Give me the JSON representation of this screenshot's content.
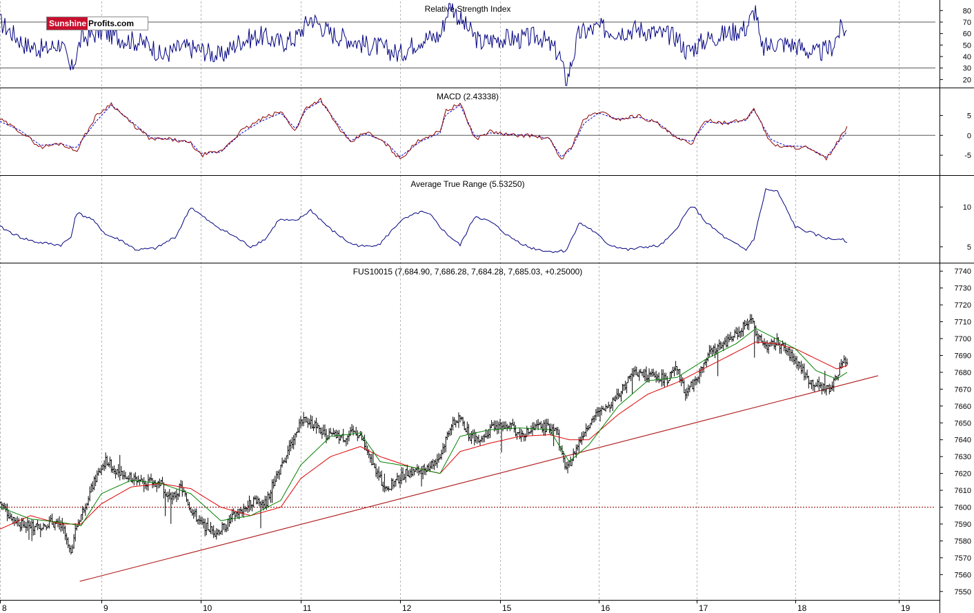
{
  "logo": {
    "part1": "Sunshine",
    "part2": "Profits.com"
  },
  "panels": {
    "rsi": {
      "title": "Relative Strength Index",
      "ticks": [
        80,
        70,
        60,
        50,
        40,
        30,
        20
      ],
      "levels": [
        70,
        30
      ]
    },
    "macd": {
      "title": "MACD (2.43338)",
      "ticks": [
        5,
        0,
        -5
      ]
    },
    "atr": {
      "title": "Average True Range (5.53250)",
      "ticks": [
        10,
        5
      ]
    },
    "price": {
      "title": "FUS10015 (7,684.90, 7,686.28, 7,684.28, 7,685.03, +0.25000)"
    }
  },
  "colors": {
    "price_bars": "#000000",
    "rsi_line": "#000080",
    "macd_line": "#8b0000",
    "macd_signal": "#0000cd",
    "atr_line": "#000080",
    "ma_short": "#008000",
    "ma_long": "#dd0000",
    "trendline": "#b22222",
    "support": "#8b0000",
    "grid": "#b4b4b4"
  },
  "chart_data": {
    "type": "candlestick",
    "symbol": "FUS10015",
    "last_ohlc": {
      "open": 7684.9,
      "high": 7686.28,
      "low": 7684.28,
      "close": 7685.03,
      "change": 0.25
    },
    "x_labels": [
      "8",
      "9",
      "10",
      "11",
      "12",
      "15",
      "16",
      "17",
      "18",
      "19"
    ],
    "price_axis": {
      "ylim": [
        7545,
        7745
      ],
      "ticks": [
        7740,
        7730,
        7720,
        7710,
        7700,
        7690,
        7680,
        7670,
        7660,
        7650,
        7640,
        7630,
        7620,
        7610,
        7600,
        7590,
        7580,
        7570,
        7560,
        7550
      ]
    },
    "price_path": [
      [
        0,
        7603
      ],
      [
        0.08,
        7596
      ],
      [
        0.2,
        7590
      ],
      [
        0.35,
        7588
      ],
      [
        0.5,
        7591
      ],
      [
        0.62,
        7588
      ],
      [
        0.69,
        7572
      ],
      [
        0.75,
        7588
      ],
      [
        0.85,
        7603
      ],
      [
        0.95,
        7618
      ],
      [
        1.05,
        7628
      ],
      [
        1.12,
        7623
      ],
      [
        1.2,
        7620
      ],
      [
        1.3,
        7617
      ],
      [
        1.45,
        7615
      ],
      [
        1.6,
        7614
      ],
      [
        1.7,
        7604
      ],
      [
        1.8,
        7612
      ],
      [
        1.9,
        7599
      ],
      [
        2.0,
        7590
      ],
      [
        2.15,
        7585
      ],
      [
        2.25,
        7589
      ],
      [
        2.35,
        7596
      ],
      [
        2.45,
        7600
      ],
      [
        2.55,
        7605
      ],
      [
        2.65,
        7602
      ],
      [
        2.75,
        7618
      ],
      [
        2.85,
        7628
      ],
      [
        2.95,
        7646
      ],
      [
        3.05,
        7652
      ],
      [
        3.15,
        7648
      ],
      [
        3.25,
        7643
      ],
      [
        3.35,
        7642
      ],
      [
        3.45,
        7641
      ],
      [
        3.55,
        7645
      ],
      [
        3.62,
        7640
      ],
      [
        3.68,
        7630
      ],
      [
        3.75,
        7622
      ],
      [
        3.85,
        7611
      ],
      [
        3.95,
        7615
      ],
      [
        4.05,
        7620
      ],
      [
        4.2,
        7622
      ],
      [
        4.3,
        7625
      ],
      [
        4.4,
        7630
      ],
      [
        4.5,
        7648
      ],
      [
        4.6,
        7653
      ],
      [
        4.7,
        7642
      ],
      [
        4.8,
        7641
      ],
      [
        4.9,
        7646
      ],
      [
        5.0,
        7649
      ],
      [
        5.1,
        7648
      ],
      [
        5.2,
        7643
      ],
      [
        5.3,
        7645
      ],
      [
        5.4,
        7648
      ],
      [
        5.5,
        7647
      ],
      [
        5.57,
        7648
      ],
      [
        5.62,
        7631
      ],
      [
        5.68,
        7622
      ],
      [
        5.75,
        7632
      ],
      [
        5.85,
        7645
      ],
      [
        5.95,
        7654
      ],
      [
        6.05,
        7657
      ],
      [
        6.2,
        7667
      ],
      [
        6.35,
        7680
      ],
      [
        6.5,
        7678
      ],
      [
        6.6,
        7677
      ],
      [
        6.7,
        7676
      ],
      [
        6.8,
        7682
      ],
      [
        6.88,
        7668
      ],
      [
        6.95,
        7672
      ],
      [
        7.05,
        7682
      ],
      [
        7.15,
        7693
      ],
      [
        7.25,
        7696
      ],
      [
        7.35,
        7700
      ],
      [
        7.45,
        7705
      ],
      [
        7.55,
        7713
      ],
      [
        7.62,
        7700
      ],
      [
        7.72,
        7695
      ],
      [
        7.82,
        7698
      ],
      [
        7.92,
        7692
      ],
      [
        8.02,
        7686
      ],
      [
        8.12,
        7676
      ],
      [
        8.22,
        7672
      ],
      [
        8.32,
        7670
      ],
      [
        8.38,
        7674
      ],
      [
        8.45,
        7686
      ],
      [
        8.5,
        7685
      ]
    ],
    "series": [
      {
        "name": "RSI",
        "ylim": [
          13,
          88
        ],
        "overbought": 70,
        "oversold": 30,
        "x": [
          0,
          0.25,
          0.45,
          0.6,
          0.7,
          0.8,
          1.0,
          1.2,
          1.5,
          1.6,
          1.8,
          2.0,
          2.2,
          2.4,
          2.6,
          2.8,
          2.95,
          3.1,
          3.3,
          3.5,
          3.65,
          3.8,
          4.0,
          4.2,
          4.4,
          4.5,
          4.6,
          4.8,
          5.0,
          5.2,
          5.4,
          5.6,
          5.67,
          5.8,
          6.0,
          6.2,
          6.4,
          6.6,
          6.8,
          6.9,
          7.1,
          7.3,
          7.5,
          7.6,
          7.65,
          7.8,
          8.0,
          8.2,
          8.35,
          8.45,
          8.5
        ],
        "values": [
          70,
          50,
          46,
          52,
          27,
          55,
          62,
          56,
          50,
          40,
          48,
          46,
          40,
          54,
          58,
          52,
          56,
          74,
          60,
          55,
          50,
          48,
          42,
          55,
          58,
          87,
          72,
          52,
          56,
          55,
          58,
          42,
          17,
          60,
          65,
          62,
          64,
          60,
          57,
          44,
          55,
          60,
          65,
          82,
          46,
          52,
          50,
          42,
          48,
          66,
          60
        ]
      },
      {
        "name": "MACD",
        "ylim": [
          -10,
          12
        ],
        "x": [
          0,
          0.2,
          0.4,
          0.6,
          0.75,
          0.95,
          1.1,
          1.3,
          1.5,
          1.7,
          1.9,
          2.0,
          2.2,
          2.4,
          2.6,
          2.8,
          2.95,
          3.05,
          3.2,
          3.35,
          3.5,
          3.65,
          3.85,
          4.0,
          4.2,
          4.4,
          4.45,
          4.6,
          4.75,
          4.9,
          5.1,
          5.3,
          5.5,
          5.62,
          5.72,
          5.85,
          6.0,
          6.2,
          6.4,
          6.6,
          6.8,
          6.95,
          7.1,
          7.3,
          7.5,
          7.58,
          7.75,
          7.9,
          8.1,
          8.3,
          8.5
        ],
        "values": [
          4,
          1,
          -3,
          -2,
          -4,
          5,
          8,
          3,
          -1,
          -1,
          -2,
          -5,
          -4,
          1,
          4,
          6,
          1,
          7,
          9,
          3,
          -2,
          1,
          -2,
          -6,
          -1,
          1,
          6,
          8,
          -1,
          1,
          0,
          0,
          -1,
          -6,
          -3,
          4,
          6,
          4,
          5,
          3,
          -1,
          -2,
          4,
          3,
          4,
          7,
          -2,
          -3,
          -3,
          -6,
          2
        ],
        "signal": [
          3.5,
          1.2,
          -2.5,
          -2.1,
          -3.2,
          3.6,
          7.6,
          3.5,
          -0.6,
          -1.0,
          -1.8,
          -4.5,
          -4.2,
          0.4,
          3.5,
          5.6,
          1.6,
          6.4,
          8.6,
          3.6,
          -1.4,
          0.4,
          -1.6,
          -5.4,
          -1.6,
          0.6,
          5.0,
          7.6,
          -0.4,
          0.6,
          0.2,
          0.0,
          -0.8,
          -5.4,
          -3.5,
          3.0,
          5.6,
          4.0,
          4.6,
          3.2,
          -0.6,
          -1.6,
          3.3,
          3.0,
          3.8,
          6.4,
          -1.0,
          -2.6,
          -2.8,
          -5.5,
          1.0
        ]
      },
      {
        "name": "Average True Range",
        "ylim": [
          3,
          14
        ],
        "x": [
          0,
          0.2,
          0.35,
          0.6,
          0.7,
          0.75,
          0.9,
          1.05,
          1.2,
          1.35,
          1.55,
          1.75,
          1.9,
          1.98,
          2.1,
          2.35,
          2.5,
          2.65,
          2.78,
          2.95,
          3.1,
          3.3,
          3.5,
          3.65,
          3.8,
          4.0,
          4.2,
          4.3,
          4.45,
          4.6,
          4.75,
          4.92,
          5.1,
          5.3,
          5.5,
          5.67,
          5.8,
          5.92,
          6.1,
          6.3,
          6.48,
          6.62,
          6.75,
          6.95,
          7.1,
          7.3,
          7.5,
          7.58,
          7.7,
          7.82,
          8.0,
          8.2,
          8.35,
          8.45,
          8.5
        ],
        "values": [
          7.5,
          6.2,
          5.6,
          5.2,
          6.2,
          9.3,
          8.5,
          6.5,
          5.8,
          4.6,
          4.8,
          6.3,
          10.0,
          9.2,
          8.0,
          6.2,
          5.0,
          6.0,
          8.4,
          8.2,
          9.6,
          7.2,
          5.4,
          5.0,
          5.4,
          8.2,
          9.4,
          9.0,
          6.8,
          5.2,
          8.9,
          8.0,
          6.2,
          4.9,
          4.4,
          4.5,
          8.0,
          7.2,
          5.3,
          4.6,
          5.0,
          5.1,
          6.5,
          10.3,
          8.0,
          6.0,
          4.6,
          6.0,
          12.2,
          11.9,
          7.5,
          6.5,
          5.9,
          6.1,
          5.6
        ]
      },
      {
        "name": "Moving average (short)",
        "x": [
          0,
          0.3,
          0.6,
          0.8,
          1.0,
          1.3,
          1.6,
          1.9,
          2.2,
          2.5,
          2.8,
          3.0,
          3.3,
          3.6,
          3.8,
          4.1,
          4.4,
          4.6,
          4.9,
          5.2,
          5.5,
          5.7,
          5.9,
          6.2,
          6.5,
          6.8,
          7.1,
          7.4,
          7.6,
          7.8,
          8.0,
          8.2,
          8.4,
          8.5
        ],
        "values": [
          7600,
          7593,
          7591,
          7589,
          7608,
          7616,
          7614,
          7608,
          7592,
          7595,
          7604,
          7625,
          7642,
          7644,
          7627,
          7624,
          7620,
          7642,
          7646,
          7647,
          7646,
          7627,
          7637,
          7660,
          7675,
          7677,
          7688,
          7697,
          7706,
          7700,
          7694,
          7681,
          7676,
          7680
        ]
      },
      {
        "name": "Moving average (long)",
        "x": [
          0,
          0.3,
          0.6,
          0.8,
          1.0,
          1.3,
          1.6,
          1.9,
          2.2,
          2.5,
          2.8,
          3.0,
          3.3,
          3.6,
          3.8,
          4.1,
          4.4,
          4.6,
          4.9,
          5.2,
          5.5,
          5.7,
          5.9,
          6.2,
          6.5,
          6.8,
          7.1,
          7.4,
          7.6,
          7.8,
          8.0,
          8.2,
          8.4,
          8.5
        ],
        "values": [
          7587,
          7595,
          7590,
          7590,
          7602,
          7612,
          7614,
          7611,
          7600,
          7595,
          7600,
          7617,
          7630,
          7636,
          7630,
          7624,
          7620,
          7633,
          7638,
          7642,
          7643,
          7640,
          7640,
          7655,
          7667,
          7674,
          7683,
          7692,
          7698,
          7697,
          7694,
          7688,
          7682,
          7684
        ]
      }
    ],
    "trendline": {
      "from": [
        -0.22,
        7556
      ],
      "to": [
        8.8,
        7678
      ]
    },
    "support_level": 7600
  }
}
